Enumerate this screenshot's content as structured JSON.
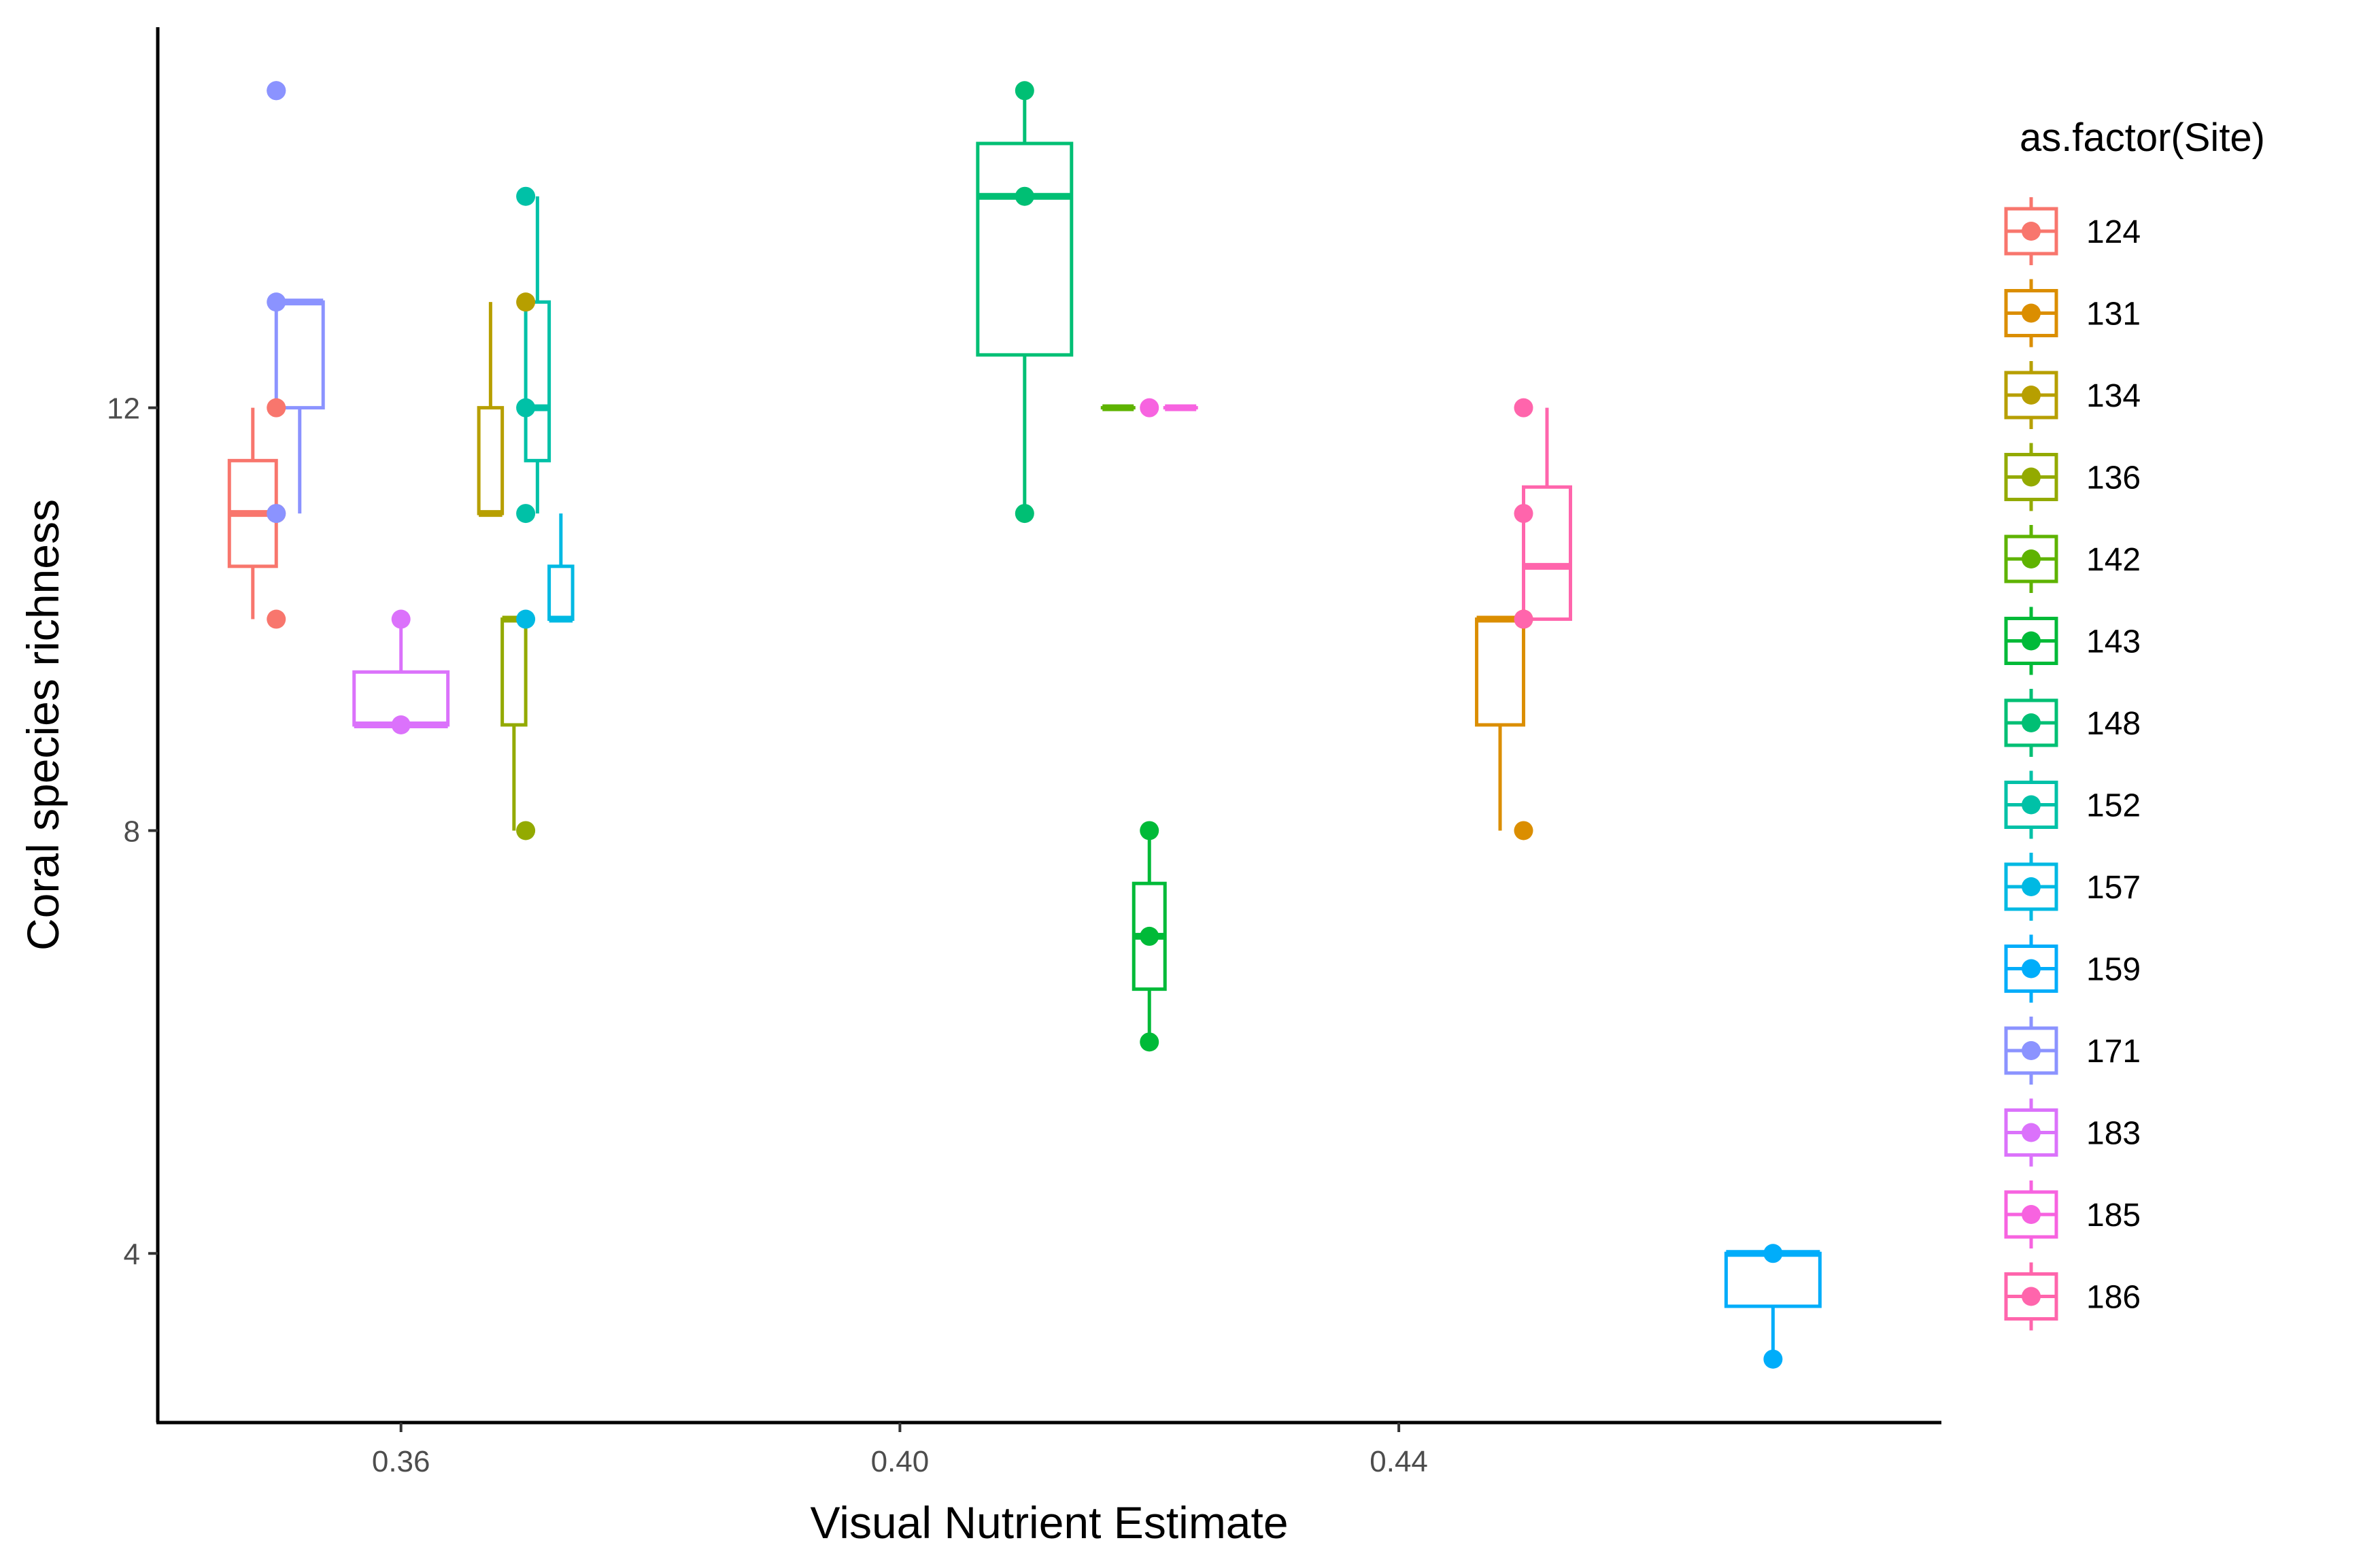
{
  "chart_data": {
    "type": "boxplot",
    "xlabel": "Visual Nutrient Estimate",
    "ylabel": "Coral species richness",
    "xlim": [
      0.3405,
      0.4835
    ],
    "ylim": [
      2.4,
      15.6
    ],
    "xticks": [
      0.36,
      0.4,
      0.44
    ],
    "xtick_labels": [
      "0.36",
      "0.40",
      "0.44"
    ],
    "yticks": [
      4,
      8,
      12
    ],
    "ytick_labels": [
      "4",
      "8",
      "12"
    ],
    "grid": false,
    "legend": {
      "title": "as.factor(Site)",
      "position": "right"
    },
    "series": [
      {
        "name": "124",
        "color": "#F8766D",
        "x": 0.35,
        "box": [
          10,
          10.5,
          11,
          11.5,
          12
        ],
        "points": [
          12,
          11,
          10
        ]
      },
      {
        "name": "131",
        "color": "#DB8E00",
        "x": 0.45,
        "box": [
          8,
          9,
          10,
          10,
          10
        ],
        "points": [
          8,
          10
        ]
      },
      {
        "name": "134",
        "color": "#B79F00",
        "x": 0.37,
        "box": [
          11,
          11,
          11,
          12,
          13
        ],
        "points": [
          13
        ]
      },
      {
        "name": "136",
        "color": "#93AA00",
        "x": 0.37,
        "box": [
          8,
          9,
          10,
          10,
          10
        ],
        "points": [
          8
        ]
      },
      {
        "name": "142",
        "color": "#5EB300",
        "x": 0.42,
        "box": [
          12,
          12,
          12,
          12,
          12
        ],
        "points": []
      },
      {
        "name": "143",
        "color": "#00BA38",
        "x": 0.42,
        "box": [
          6,
          6.5,
          7,
          7.5,
          8
        ],
        "points": [
          8,
          7,
          6
        ]
      },
      {
        "name": "148",
        "color": "#00BF74",
        "x": 0.41,
        "box": [
          11,
          12.5,
          14,
          14.5,
          15
        ],
        "points": [
          15,
          14,
          11
        ]
      },
      {
        "name": "152",
        "color": "#00C1A7",
        "x": 0.37,
        "box": [
          11,
          11.5,
          12,
          13,
          14
        ],
        "points": [
          14,
          12,
          11
        ]
      },
      {
        "name": "157",
        "color": "#00B9E3",
        "x": 0.37,
        "box": [
          10,
          10,
          10,
          10.5,
          11
        ],
        "points": [
          10
        ]
      },
      {
        "name": "159",
        "color": "#00ADFA",
        "x": 0.47,
        "box": [
          3,
          3.5,
          4,
          4,
          4
        ],
        "points": [
          4,
          3
        ]
      },
      {
        "name": "171",
        "color": "#8B93FF",
        "x": 0.35,
        "box": [
          11,
          12,
          13,
          13,
          13
        ],
        "points": [
          15,
          15,
          13,
          11
        ]
      },
      {
        "name": "183",
        "color": "#DB72FB",
        "x": 0.36,
        "box": [
          9,
          9,
          9,
          9.5,
          10
        ],
        "points": [
          10,
          9
        ]
      },
      {
        "name": "185",
        "color": "#F763E0",
        "x": 0.42,
        "box": [
          12,
          12,
          12,
          12,
          12
        ],
        "points": [
          12
        ]
      },
      {
        "name": "186",
        "color": "#FF65AC",
        "x": 0.45,
        "box": [
          10,
          10,
          10.5,
          11.25,
          12
        ],
        "points": [
          12,
          11,
          10
        ]
      }
    ]
  }
}
